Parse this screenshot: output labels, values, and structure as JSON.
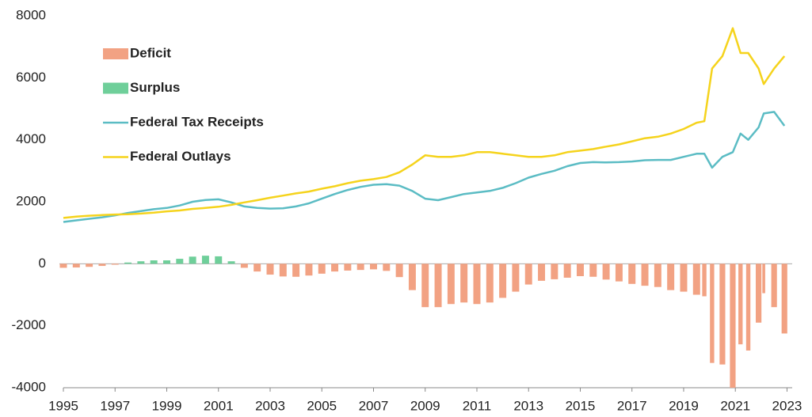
{
  "chart_data": {
    "type": "bar_line",
    "x": [
      1995,
      1995.5,
      1996,
      1996.5,
      1997,
      1997.5,
      1998,
      1998.5,
      1999,
      1999.5,
      2000,
      2000.5,
      2001,
      2001.5,
      2002,
      2002.5,
      2003,
      2003.5,
      2004,
      2004.5,
      2005,
      2005.5,
      2006,
      2006.5,
      2007,
      2007.5,
      2008,
      2008.5,
      2009,
      2009.5,
      2010,
      2010.5,
      2011,
      2011.5,
      2012,
      2012.5,
      2013,
      2013.5,
      2014,
      2014.5,
      2015,
      2015.5,
      2016,
      2016.5,
      2017,
      2017.5,
      2018,
      2018.5,
      2019,
      2019.5,
      2019.8,
      2020.1,
      2020.5,
      2020.9,
      2021.2,
      2021.5,
      2021.9,
      2022.1,
      2022.5,
      2022.9
    ],
    "series": [
      {
        "name": "Deficit",
        "kind": "bar",
        "color": "#f2a283",
        "values": [
          -130,
          -120,
          -100,
          -70,
          -30,
          null,
          null,
          null,
          null,
          null,
          null,
          null,
          null,
          null,
          -130,
          -250,
          -350,
          -410,
          -420,
          -380,
          -320,
          -250,
          -220,
          -200,
          -180,
          -230,
          -430,
          -850,
          -1400,
          -1400,
          -1300,
          -1250,
          -1300,
          -1250,
          -1100,
          -900,
          -670,
          -550,
          -500,
          -450,
          -400,
          -420,
          -510,
          -570,
          -650,
          -710,
          -750,
          -850,
          -900,
          -1000,
          -1050,
          -3200,
          -3250,
          -4000,
          -2600,
          -2800,
          -1900,
          -950,
          -1400,
          -2250
        ]
      },
      {
        "name": "Surplus",
        "kind": "bar",
        "color": "#6fcf9a",
        "values": [
          null,
          null,
          null,
          null,
          null,
          40,
          80,
          110,
          110,
          160,
          230,
          260,
          240,
          80,
          null,
          null,
          null,
          null,
          null,
          null,
          null,
          null,
          null,
          null,
          null,
          null,
          null,
          null,
          null,
          null,
          null,
          null,
          null,
          null,
          null,
          null,
          null,
          null,
          null,
          null,
          null,
          null,
          null,
          null,
          null,
          null,
          null,
          null,
          null,
          null,
          null,
          null,
          null,
          null,
          null,
          null,
          null,
          null,
          null,
          null
        ]
      },
      {
        "name": "Federal Tax Receipts",
        "kind": "line",
        "color": "#5bbcc4",
        "values": [
          1350,
          1400,
          1450,
          1500,
          1560,
          1640,
          1700,
          1760,
          1800,
          1880,
          2000,
          2060,
          2080,
          1980,
          1850,
          1800,
          1780,
          1790,
          1850,
          1950,
          2100,
          2250,
          2380,
          2480,
          2550,
          2570,
          2520,
          2350,
          2100,
          2050,
          2150,
          2250,
          2300,
          2350,
          2450,
          2600,
          2780,
          2900,
          3000,
          3150,
          3250,
          3280,
          3270,
          3280,
          3300,
          3340,
          3350,
          3350,
          3450,
          3550,
          3550,
          3100,
          3450,
          3600,
          4200,
          4000,
          4400,
          4850,
          4900,
          4450
        ]
      },
      {
        "name": "Federal Outlays",
        "kind": "line",
        "color": "#f5d31c",
        "values": [
          1480,
          1520,
          1550,
          1570,
          1590,
          1600,
          1620,
          1650,
          1690,
          1720,
          1770,
          1800,
          1840,
          1900,
          1980,
          2050,
          2130,
          2200,
          2270,
          2330,
          2420,
          2500,
          2600,
          2680,
          2730,
          2800,
          2950,
          3200,
          3500,
          3450,
          3450,
          3500,
          3600,
          3600,
          3550,
          3500,
          3450,
          3450,
          3500,
          3600,
          3650,
          3700,
          3780,
          3850,
          3950,
          4050,
          4100,
          4200,
          4350,
          4550,
          4600,
          6300,
          6700,
          7600,
          6800,
          6800,
          6300,
          5800,
          6300,
          6700
        ]
      }
    ],
    "xlim": [
      1995,
      2023.2
    ],
    "xticks": [
      1995,
      1997,
      1999,
      2001,
      2003,
      2005,
      2007,
      2009,
      2011,
      2013,
      2015,
      2017,
      2019,
      2021,
      2023
    ],
    "ylim": [
      -4000,
      8000
    ],
    "yticks": [
      -4000,
      -2000,
      0,
      2000,
      4000,
      6000,
      8000
    ],
    "legend": "upper left"
  }
}
